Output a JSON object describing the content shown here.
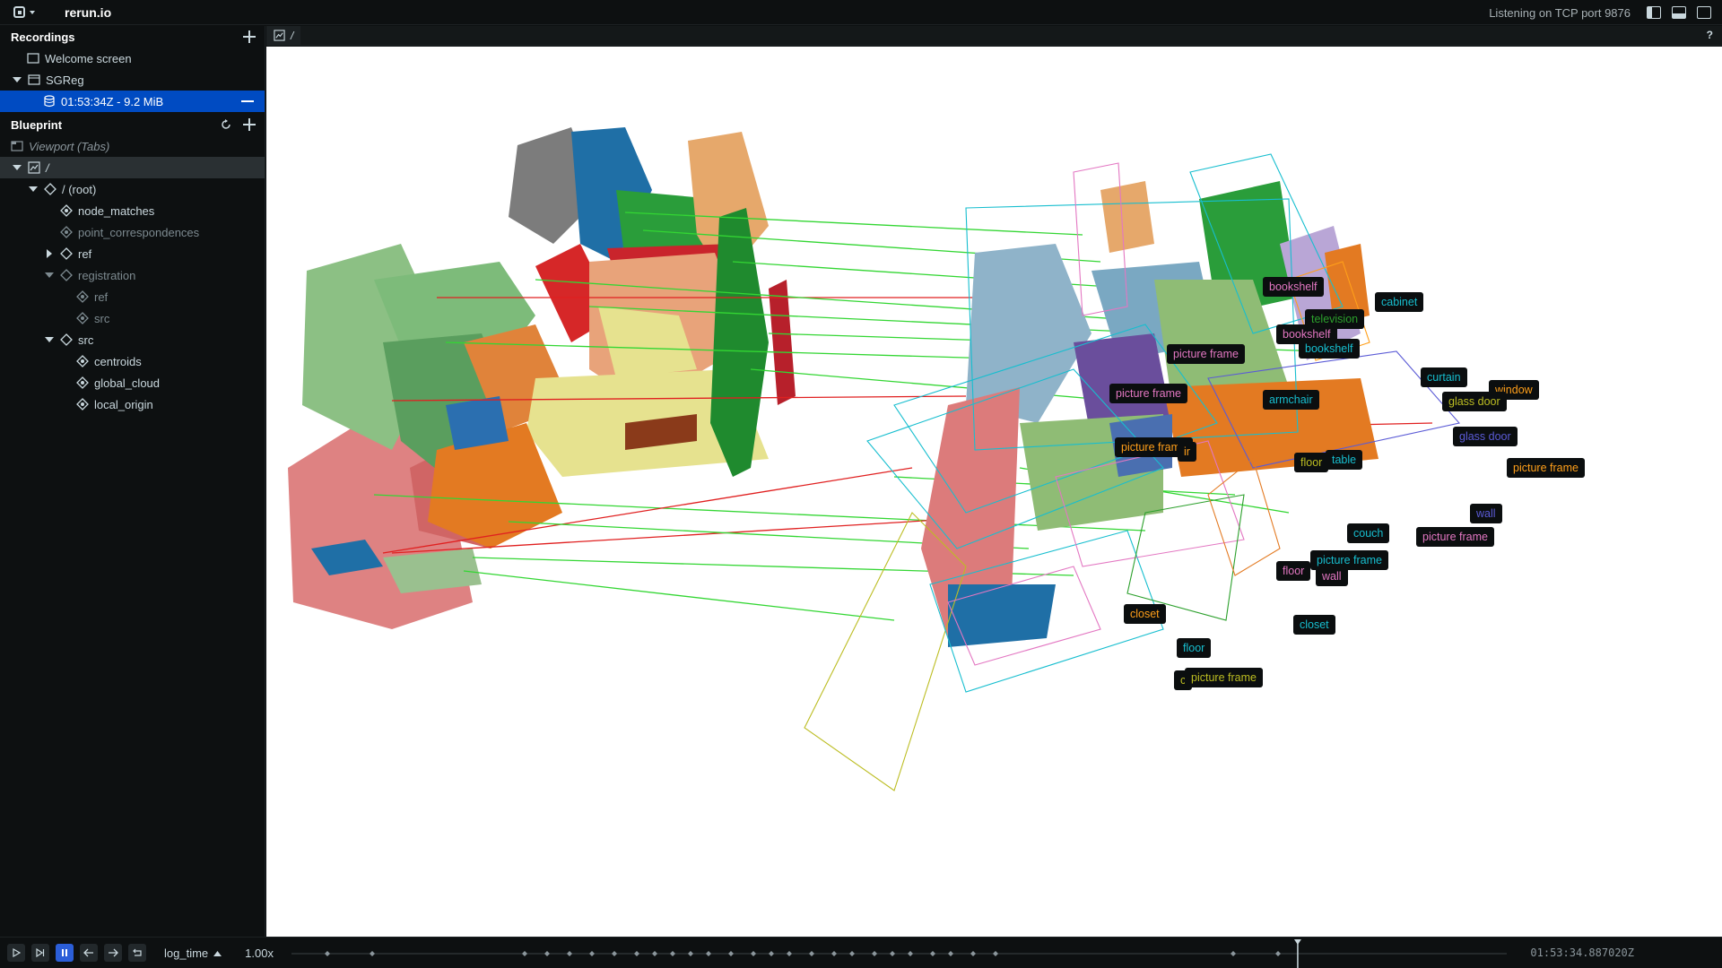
{
  "app": {
    "title": "rerun.io",
    "status": "Listening on TCP port 9876"
  },
  "recordings": {
    "title": "Recordings",
    "items": [
      {
        "label": "Welcome screen"
      },
      {
        "label": "SGReg"
      },
      {
        "label": "01:53:34Z - 9.2 MiB"
      }
    ]
  },
  "blueprint": {
    "title": "Blueprint",
    "viewport_label": "Viewport (Tabs)",
    "space_label": "/",
    "tree": [
      {
        "label": "/ (root)"
      },
      {
        "label": "node_matches"
      },
      {
        "label": "point_correspondences"
      },
      {
        "label": "ref"
      },
      {
        "label": "registration"
      },
      {
        "label": "ref"
      },
      {
        "label": "src"
      },
      {
        "label": "src"
      },
      {
        "label": "centroids"
      },
      {
        "label": "global_cloud"
      },
      {
        "label": "local_origin"
      }
    ]
  },
  "tab": {
    "label": "/"
  },
  "help": "?",
  "scene_labels": [
    {
      "text": "bookshelf",
      "color": "#e377c2"
    },
    {
      "text": "cabinet",
      "color": "#17becf"
    },
    {
      "text": "television",
      "color": "#2ca02c"
    },
    {
      "text": "bookshelf",
      "color": "#e377c2"
    },
    {
      "text": "bookshelf",
      "color": "#17becf"
    },
    {
      "text": "picture frame",
      "color": "#e377c2"
    },
    {
      "text": "curtain",
      "color": "#17becf"
    },
    {
      "text": "window",
      "color": "#ff9f1a"
    },
    {
      "text": "picture frame",
      "color": "#e377c2"
    },
    {
      "text": "armchair",
      "color": "#17becf"
    },
    {
      "text": "glass door",
      "color": "#bcbd22"
    },
    {
      "text": "glass door",
      "color": "#5b5bd6"
    },
    {
      "text": "picture frame",
      "color": "#ff9f1a"
    },
    {
      "text": "ir",
      "color": "#ff9f1a"
    },
    {
      "text": "floor",
      "color": "#bcbd22"
    },
    {
      "text": "table",
      "color": "#17becf"
    },
    {
      "text": "picture frame",
      "color": "#ff9f1a"
    },
    {
      "text": "wall",
      "color": "#5b5bd6"
    },
    {
      "text": "couch",
      "color": "#17becf"
    },
    {
      "text": "picture frame",
      "color": "#e377c2"
    },
    {
      "text": "picture frame",
      "color": "#17becf"
    },
    {
      "text": "floor",
      "color": "#e377c2"
    },
    {
      "text": "wall",
      "color": "#e377c2"
    },
    {
      "text": "closet",
      "color": "#ff9f1a"
    },
    {
      "text": "closet",
      "color": "#17becf"
    },
    {
      "text": "floor",
      "color": "#17becf"
    },
    {
      "text": "c",
      "color": "#bcbd22"
    },
    {
      "text": "picture frame",
      "color": "#bcbd22"
    }
  ],
  "time_panel": {
    "timeline": "log_time",
    "speed": "1.00x",
    "current_time": "01:53:34.887020Z",
    "progress": 0.828
  }
}
